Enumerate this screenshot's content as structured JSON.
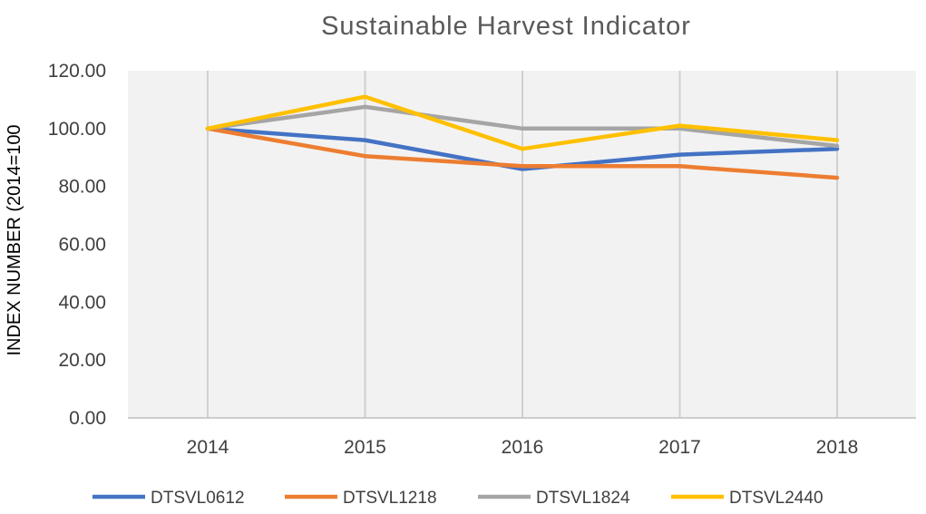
{
  "chart_data": {
    "type": "line",
    "title": "Sustainable Harvest Indicator",
    "xlabel": "",
    "ylabel": "INDEX NUMBER (2014=100",
    "categories": [
      "2014",
      "2015",
      "2016",
      "2017",
      "2018"
    ],
    "ylim": [
      0,
      120
    ],
    "yticks": [
      "0.00",
      "20.00",
      "40.00",
      "60.00",
      "80.00",
      "100.00",
      "120.00"
    ],
    "ytick_values": [
      0,
      20,
      40,
      60,
      80,
      100,
      120
    ],
    "grid": "vertical",
    "legend_position": "bottom",
    "series": [
      {
        "name": "DTSVL0612",
        "color": "#4472C4",
        "values": [
          100,
          96,
          86,
          91,
          93
        ]
      },
      {
        "name": "DTSVL1218",
        "color": "#ED7D31",
        "values": [
          100,
          90.5,
          87,
          87,
          83
        ]
      },
      {
        "name": "DTSVL1824",
        "color": "#A5A5A5",
        "values": [
          100,
          107.5,
          100,
          100,
          94
        ]
      },
      {
        "name": "DTSVL2440",
        "color": "#FFC000",
        "values": [
          100,
          111,
          93,
          101,
          96
        ]
      }
    ]
  }
}
